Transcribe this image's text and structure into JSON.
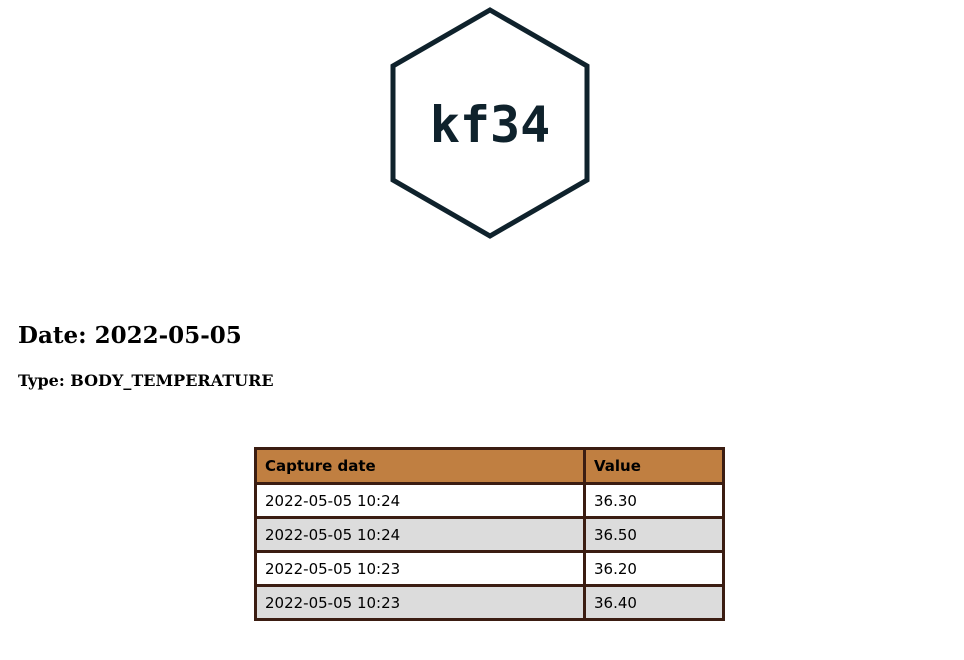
{
  "logo": {
    "text": "kf34",
    "color": "#0f222c"
  },
  "report": {
    "date_label": "Date:",
    "date_value": "2022-05-05",
    "type_label": "Type:",
    "type_value": "BODY_TEMPERATURE"
  },
  "table": {
    "headers": {
      "capture_date": "Capture date",
      "value": "Value"
    },
    "header_color": "#c07f41",
    "border_color": "#3b1d12",
    "stripe_color": "#dcdcdc",
    "rows": [
      {
        "capture_date": "2022-05-05 10:24",
        "value": "36.30"
      },
      {
        "capture_date": "2022-05-05 10:24",
        "value": "36.50"
      },
      {
        "capture_date": "2022-05-05 10:23",
        "value": "36.20"
      },
      {
        "capture_date": "2022-05-05 10:23",
        "value": "36.40"
      }
    ]
  }
}
